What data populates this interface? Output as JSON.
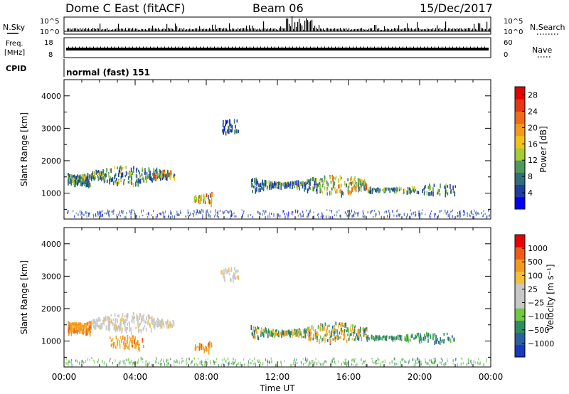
{
  "header": {
    "title": "Dome C East (fitACF)",
    "beam": "Beam 06",
    "date": "15/Dec/2017"
  },
  "strip_nsky": {
    "left_label": "N.Sky",
    "right_label": "N.Search",
    "left_ticks": [
      "10^5",
      "10^0"
    ],
    "right_ticks": [
      "10^5",
      "10^0"
    ]
  },
  "strip_freq": {
    "left_label_top": "Freq.",
    "left_label_unit": "[MHz]",
    "left_ticks": [
      "18",
      "8"
    ],
    "right_ticks": [
      "60",
      "0"
    ],
    "right_label": "Nave"
  },
  "strip_cpid": {
    "left_label": "CPID",
    "value": "normal (fast) 151"
  },
  "colors": {
    "power_scale": [
      "#0000ff",
      "#1e3fa0",
      "#2f6e7a",
      "#4f9a5a",
      "#a5cc33",
      "#f2c21b",
      "#f39a1b",
      "#f06b14",
      "#e83512",
      "#e80000"
    ],
    "velocity_scale": [
      "#e80000",
      "#f25a14",
      "#f39a1b",
      "#f4bf3a",
      "#c8c8c8",
      "#c8c8c8",
      "#6ec93f",
      "#2f8c5e",
      "#2a5fa0",
      "#1838c0"
    ]
  },
  "chart_data": [
    {
      "type": "heatmap",
      "name": "power",
      "ylabel": "Slant Range [km]",
      "yticks": [
        "1000",
        "2000",
        "3000",
        "4000"
      ],
      "ylim": [
        200,
        4500
      ],
      "xticks": [
        "00:00",
        "04:00",
        "08:00",
        "12:00",
        "16:00",
        "20:00",
        "00:00"
      ],
      "xlim": [
        0,
        24
      ],
      "colorbar": {
        "label": "Power [dB]",
        "ticks": [
          "4",
          "8",
          "12",
          "16",
          "20",
          "24",
          "28"
        ],
        "range": [
          0,
          30
        ]
      },
      "echo_regions": [
        {
          "t": [
            0.2,
            1.5
          ],
          "r": [
            800,
            2100
          ],
          "level": "mixed"
        },
        {
          "t": [
            1.5,
            6.2
          ],
          "r": [
            1300,
            1900
          ],
          "level": "mixed"
        },
        {
          "t": [
            5.0,
            6.0
          ],
          "r": [
            1400,
            1900
          ],
          "level": "high"
        },
        {
          "t": [
            7.3,
            8.3
          ],
          "r": [
            650,
            1100
          ],
          "level": "high"
        },
        {
          "t": [
            8.8,
            9.8
          ],
          "r": [
            2900,
            3300
          ],
          "level": "low"
        },
        {
          "t": [
            10.5,
            14.5
          ],
          "r": [
            1000,
            1600
          ],
          "level": "mixed"
        },
        {
          "t": [
            14.5,
            17.0
          ],
          "r": [
            1000,
            1600
          ],
          "level": "high"
        },
        {
          "t": [
            17.0,
            22.0
          ],
          "r": [
            1000,
            1300
          ],
          "level": "mixed"
        }
      ]
    },
    {
      "type": "heatmap",
      "name": "velocity",
      "ylabel": "Slant Range [km]",
      "yticks": [
        "1000",
        "2000",
        "3000",
        "4000"
      ],
      "ylim": [
        200,
        4500
      ],
      "xticks": [
        "00:00",
        "04:00",
        "08:00",
        "12:00",
        "16:00",
        "20:00",
        "00:00"
      ],
      "xlim": [
        0,
        24
      ],
      "xlabel": "Time UT",
      "colorbar": {
        "label": "Velocity [m s⁻¹]",
        "ticks": [
          "1000",
          "500",
          "100",
          "25",
          "−25",
          "−100",
          "−500",
          "−1000"
        ]
      },
      "echo_regions": [
        {
          "t": [
            0.2,
            1.5
          ],
          "r": [
            800,
            2100
          ],
          "level": "negative"
        },
        {
          "t": [
            1.5,
            6.2
          ],
          "r": [
            1300,
            1900
          ],
          "level": "near-zero"
        },
        {
          "t": [
            2.5,
            4.5
          ],
          "r": [
            800,
            1200
          ],
          "level": "negative"
        },
        {
          "t": [
            7.3,
            8.3
          ],
          "r": [
            650,
            1100
          ],
          "level": "negative"
        },
        {
          "t": [
            8.8,
            9.8
          ],
          "r": [
            2900,
            3300
          ],
          "level": "near-zero"
        },
        {
          "t": [
            10.5,
            17.0
          ],
          "r": [
            1000,
            1600
          ],
          "level": "mixed"
        },
        {
          "t": [
            17.0,
            22.0
          ],
          "r": [
            1000,
            1300
          ],
          "level": "positive"
        }
      ]
    }
  ]
}
